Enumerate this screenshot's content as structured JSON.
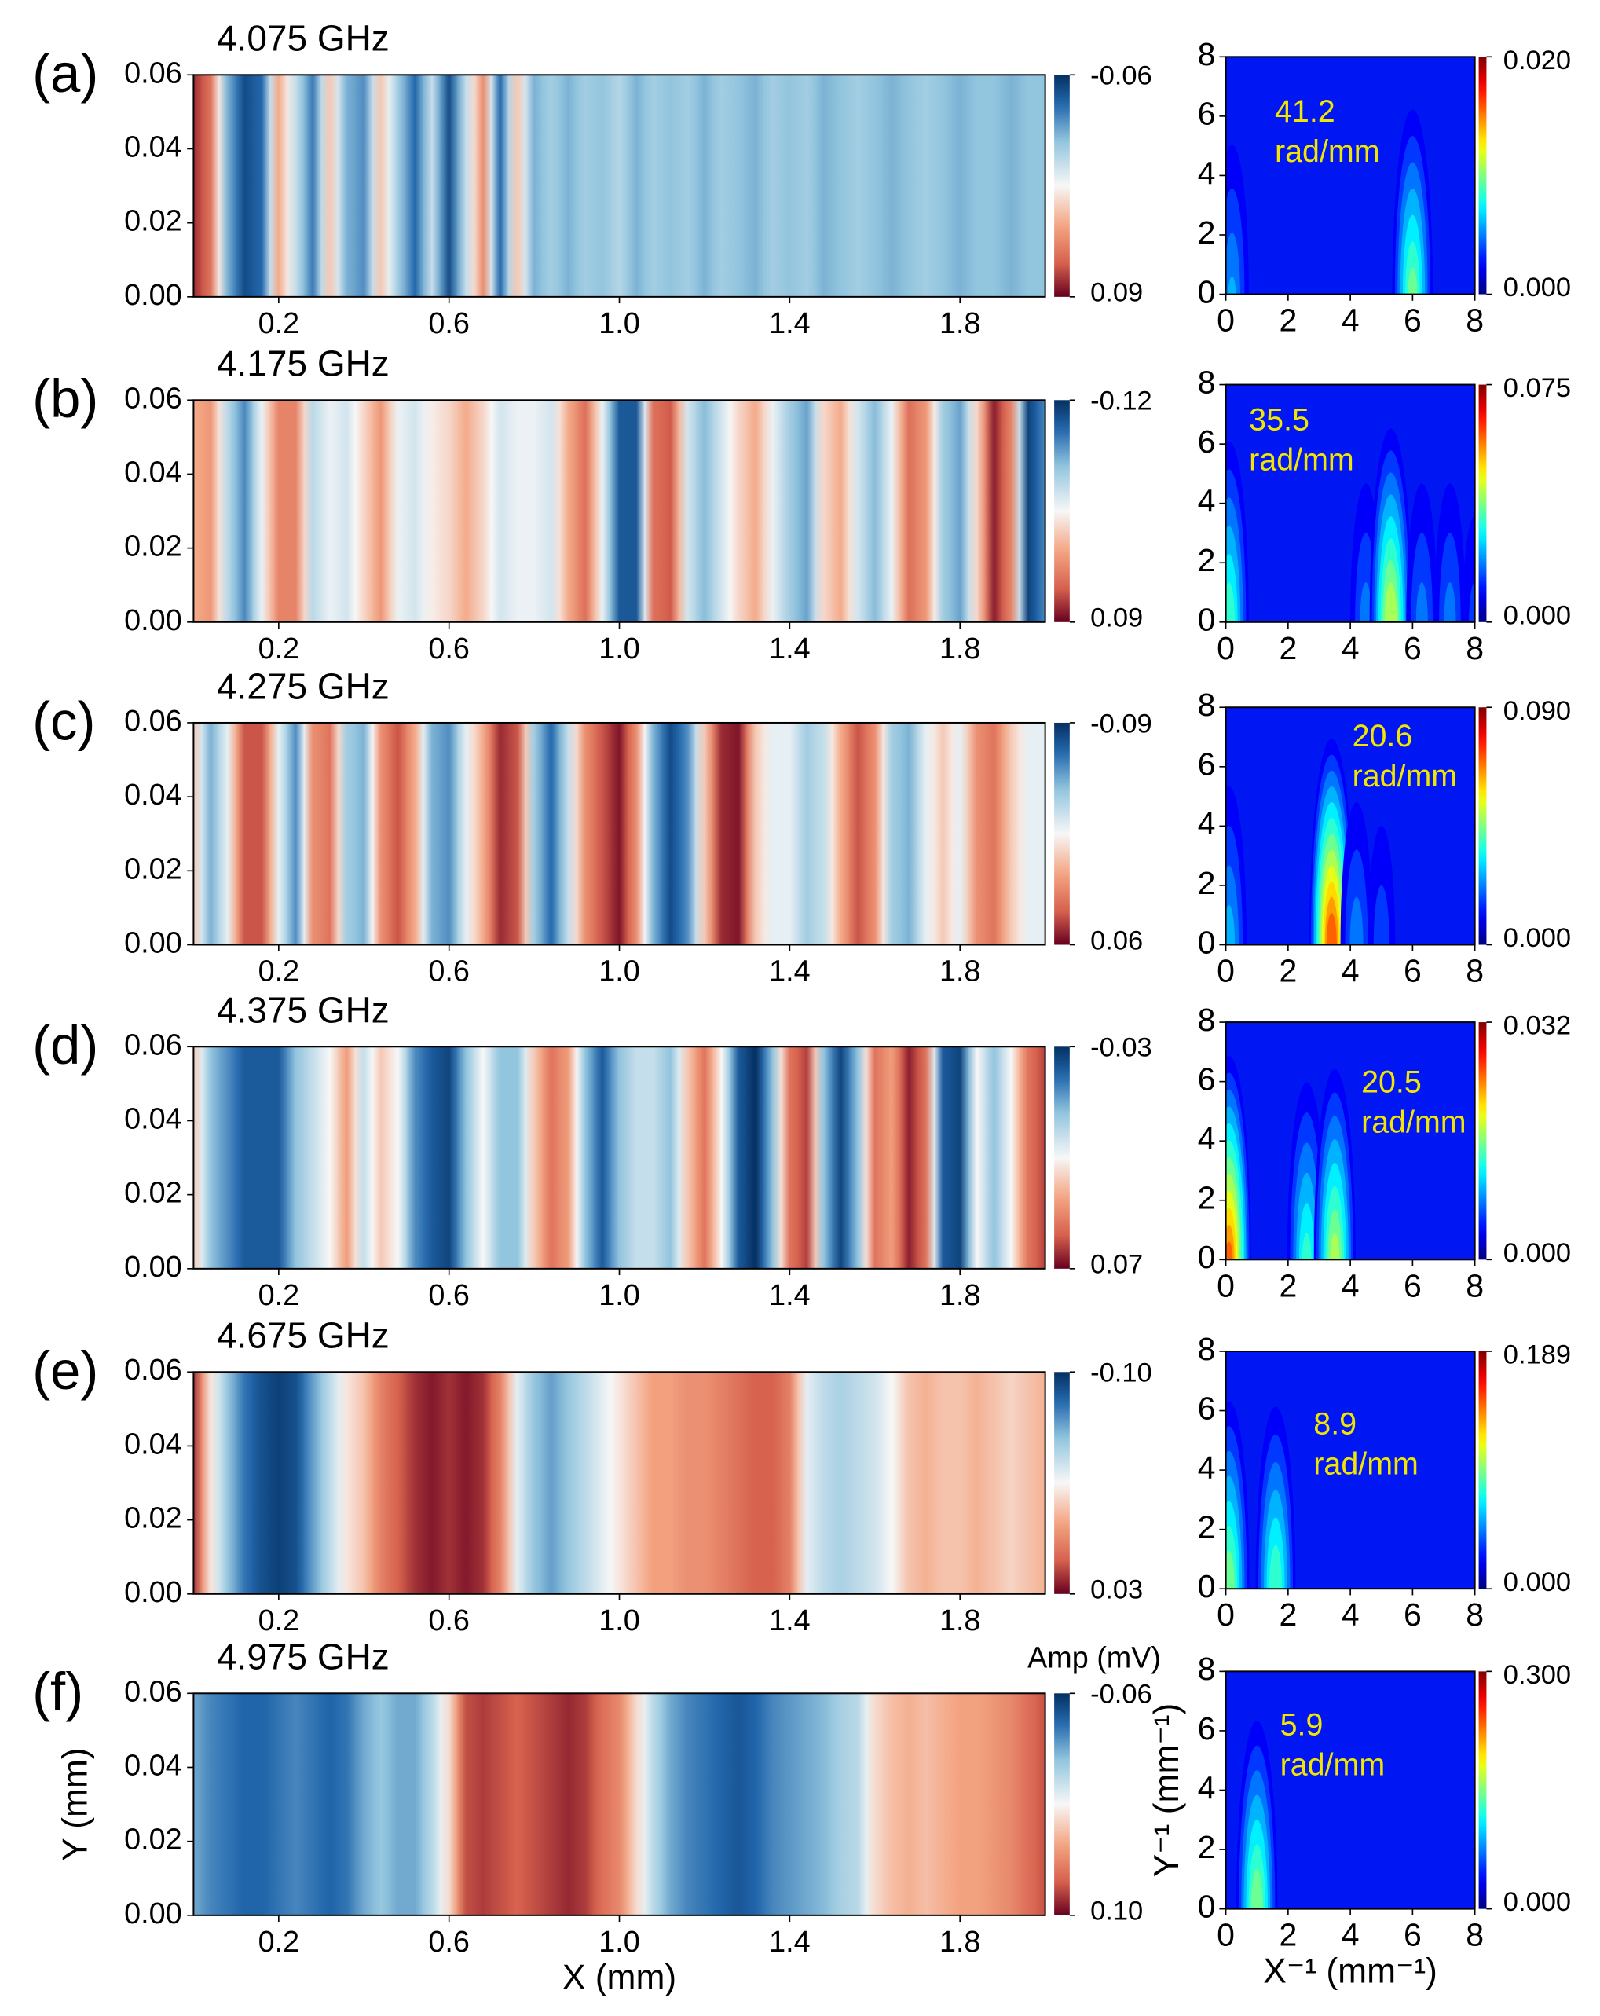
{
  "chart_data": [
    {
      "type": "heatmap",
      "panel": "(a)",
      "title": "4.075 GHz",
      "x": [
        0,
        0.04,
        0.08,
        0.12,
        0.16,
        0.2,
        0.24,
        0.28,
        0.32,
        0.36,
        0.4,
        0.44,
        0.48,
        0.52,
        0.56,
        0.6,
        0.64,
        0.68,
        0.72,
        0.76,
        0.8,
        0.84,
        0.88,
        0.92,
        0.96,
        1,
        1.04,
        1.08,
        1.12,
        1.16,
        1.2,
        1.24,
        1.28,
        1.32,
        1.36,
        1.4,
        1.44,
        1.48,
        1.52,
        1.56,
        1.6,
        1.64,
        1.68,
        1.72,
        1.76,
        1.8,
        1.84,
        1.88,
        1.92,
        1.96,
        2
      ],
      "values": [
        0.08,
        0.06,
        -0.02,
        -0.05,
        -0.04,
        0.04,
        0,
        -0.035,
        0.03,
        -0.02,
        -0.03,
        0.03,
        -0.01,
        -0.04,
        0,
        -0.05,
        0,
        0.05,
        -0.04,
        0.03,
        -0.02,
        -0.01,
        -0.02,
        -0.01,
        -0.015,
        -0.005,
        -0.02,
        -0.01,
        -0.015,
        -0.01,
        -0.02,
        -0.01,
        -0.015,
        -0.02,
        -0.01,
        -0.015,
        -0.01,
        -0.02,
        -0.015,
        -0.01,
        -0.015,
        -0.02,
        -0.015,
        -0.01,
        -0.015,
        -0.02,
        -0.015,
        -0.015,
        -0.02,
        -0.015,
        -0.015
      ],
      "xlim": [
        0,
        2
      ],
      "ylim": [
        0,
        0.06
      ],
      "xticks": [
        0.2,
        0.6,
        {
          "value": 1,
          "label": "1.0"
        },
        1.4,
        1.8
      ],
      "yticks": [
        {
          "value": 0,
          "label": "0.00"
        },
        0.02,
        0.04,
        0.06
      ],
      "cticks": [
        -0.06,
        0.09
      ]
    },
    {
      "type": "spectrum",
      "annotation": [
        "41.2",
        "rad/mm"
      ],
      "x": [
        0.2,
        6
      ],
      "values": [
        0.006,
        0.01
      ],
      "xlim": [
        0,
        8
      ],
      "ylim": [
        0,
        8
      ],
      "xticks": [
        0,
        2,
        4,
        6,
        8
      ],
      "yticks": [
        0,
        2,
        4,
        6,
        8
      ],
      "cticks": [
        {
          "value": 0,
          "label": "0.000"
        },
        {
          "value": 0.02,
          "label": "0.020"
        }
      ]
    },
    {
      "type": "heatmap",
      "panel": "(b)",
      "title": "4.175 GHz",
      "x": [
        0,
        0.04,
        0.08,
        0.12,
        0.16,
        0.2,
        0.24,
        0.28,
        0.32,
        0.36,
        0.4,
        0.44,
        0.48,
        0.52,
        0.56,
        0.6,
        0.64,
        0.68,
        0.72,
        0.76,
        0.8,
        0.84,
        0.88,
        0.92,
        0.96,
        1,
        1.04,
        1.08,
        1.12,
        1.16,
        1.2,
        1.24,
        1.28,
        1.32,
        1.36,
        1.4,
        1.44,
        1.48,
        1.52,
        1.56,
        1.6,
        1.64,
        1.68,
        1.72,
        1.76,
        1.8,
        1.84,
        1.88,
        1.92,
        1.96,
        2
      ],
      "values": [
        0.02,
        0.03,
        -0.04,
        -0.08,
        -0.02,
        0.04,
        0.04,
        -0.04,
        -0.02,
        -0.03,
        0,
        0.03,
        -0.02,
        -0.03,
        -0.01,
        0,
        0.02,
        0,
        -0.03,
        -0.02,
        -0.02,
        -0.03,
        0.02,
        0.05,
        -0.02,
        -0.1,
        -0.1,
        0.05,
        0.06,
        -0.03,
        -0.06,
        -0.03,
        0,
        0.02,
        -0.02,
        -0.05,
        -0.07,
        0,
        0.02,
        -0.03,
        -0.06,
        -0.02,
        0.05,
        0.03,
        -0.05,
        -0.07,
        0,
        0.08,
        0.04,
        -0.11,
        -0.08
      ],
      "xlim": [
        0,
        2
      ],
      "ylim": [
        0,
        0.06
      ],
      "xticks": [
        0.2,
        0.6,
        {
          "value": 1,
          "label": "1.0"
        },
        1.4,
        1.8
      ],
      "yticks": [
        {
          "value": 0,
          "label": "0.00"
        },
        0.02,
        0.04,
        0.06
      ],
      "cticks": [
        -0.12,
        0.09
      ]
    },
    {
      "type": "spectrum",
      "annotation": [
        "35.5",
        "rad/mm"
      ],
      "x": [
        0.1,
        4.5,
        5.3,
        6.3,
        7.2,
        8
      ],
      "values": [
        0.035,
        0.02,
        0.045,
        0.02,
        0.02,
        0.015
      ],
      "xlim": [
        0,
        8
      ],
      "ylim": [
        0,
        8
      ],
      "xticks": [
        0,
        2,
        4,
        6,
        8
      ],
      "yticks": [
        0,
        2,
        4,
        6,
        8
      ],
      "cticks": [
        {
          "value": 0,
          "label": "0.000"
        },
        0.075
      ]
    },
    {
      "type": "heatmap",
      "panel": "(c)",
      "title": "4.275 GHz",
      "x": [
        0,
        0.04,
        0.08,
        0.12,
        0.16,
        0.2,
        0.24,
        0.28,
        0.32,
        0.36,
        0.4,
        0.44,
        0.48,
        0.52,
        0.56,
        0.6,
        0.64,
        0.68,
        0.72,
        0.76,
        0.8,
        0.84,
        0.88,
        0.92,
        0.96,
        1,
        1.04,
        1.08,
        1.12,
        1.16,
        1.2,
        1.24,
        1.28,
        1.32,
        1.36,
        1.4,
        1.44,
        1.48,
        1.52,
        1.56,
        1.6,
        1.64,
        1.68,
        1.72,
        1.76,
        1.8,
        1.84,
        1.88,
        1.92,
        1.96,
        2
      ],
      "values": [
        0,
        -0.05,
        -0.02,
        0.04,
        0.04,
        -0.02,
        -0.06,
        0.02,
        0.03,
        -0.04,
        -0.05,
        0.02,
        0.04,
        0.01,
        -0.05,
        -0.06,
        -0.02,
        0.01,
        0.05,
        0.04,
        -0.04,
        -0.07,
        -0.03,
        0.02,
        0.04,
        0.055,
        0.02,
        -0.05,
        -0.08,
        -0.06,
        0,
        0.05,
        0.055,
        0,
        -0.02,
        -0.02,
        -0.04,
        -0.03,
        0.01,
        0.04,
        0.02,
        -0.04,
        -0.05,
        -0.02,
        0,
        -0.02,
        0.02,
        0.03,
        0,
        -0.02,
        -0.02
      ],
      "xlim": [
        0,
        2
      ],
      "ylim": [
        0,
        0.06
      ],
      "xticks": [
        0.2,
        0.6,
        {
          "value": 1,
          "label": "1.0"
        },
        1.4,
        1.8
      ],
      "yticks": [
        {
          "value": 0,
          "label": "0.00"
        },
        0.02,
        0.04,
        0.06
      ],
      "cticks": [
        -0.09,
        0.06
      ]
    },
    {
      "type": "spectrum",
      "annotation": [
        "20.6",
        "rad/mm"
      ],
      "x": [
        0.1,
        3.4,
        4.2,
        5
      ],
      "values": [
        0.03,
        0.075,
        0.025,
        0.02
      ],
      "xlim": [
        0,
        8
      ],
      "ylim": [
        0,
        8
      ],
      "xticks": [
        0,
        2,
        4,
        6,
        8
      ],
      "yticks": [
        0,
        2,
        4,
        6,
        8
      ],
      "cticks": [
        {
          "value": 0,
          "label": "0.000"
        },
        {
          "value": 0.09,
          "label": "0.090"
        }
      ]
    },
    {
      "type": "heatmap",
      "panel": "(d)",
      "title": "4.375 GHz",
      "x": [
        0,
        0.04,
        0.08,
        0.12,
        0.16,
        0.2,
        0.24,
        0.28,
        0.32,
        0.36,
        0.4,
        0.44,
        0.48,
        0.52,
        0.56,
        0.6,
        0.64,
        0.68,
        0.72,
        0.76,
        0.8,
        0.84,
        0.88,
        0.92,
        0.96,
        1,
        1.04,
        1.08,
        1.12,
        1.16,
        1.2,
        1.24,
        1.28,
        1.32,
        1.36,
        1.4,
        1.44,
        1.48,
        1.52,
        1.56,
        1.6,
        1.64,
        1.68,
        1.72,
        1.76,
        1.8,
        1.84,
        1.88,
        1.92,
        1.96,
        2
      ],
      "values": [
        0.03,
        0,
        -0.01,
        -0.02,
        -0.02,
        -0.02,
        0,
        0.01,
        0.02,
        0.04,
        0.01,
        0.03,
        0.02,
        -0.01,
        -0.02,
        -0.025,
        0,
        0.02,
        0,
        0,
        0.03,
        0.05,
        0.04,
        0,
        -0.02,
        0,
        0.01,
        0.01,
        0,
        0.03,
        0.05,
        0.02,
        -0.02,
        -0.03,
        0,
        0.05,
        0.06,
        0,
        -0.025,
        0,
        0.05,
        0.04,
        0.065,
        0.05,
        -0.02,
        -0.025,
        0.02,
        0,
        0.02,
        0.05,
        0.06
      ],
      "xlim": [
        0,
        2
      ],
      "ylim": [
        0,
        0.06
      ],
      "xticks": [
        0.2,
        0.6,
        {
          "value": 1,
          "label": "1.0"
        },
        1.4,
        1.8
      ],
      "yticks": [
        {
          "value": 0,
          "label": "0.00"
        },
        0.02,
        0.04,
        0.06
      ],
      "cticks": [
        -0.03,
        0.07
      ]
    },
    {
      "type": "spectrum",
      "annotation": [
        "20.5",
        "rad/mm"
      ],
      "x": [
        0.1,
        2.6,
        3.5
      ],
      "values": [
        0.025,
        0.014,
        0.018
      ],
      "xlim": [
        0,
        8
      ],
      "ylim": [
        0,
        8
      ],
      "xticks": [
        0,
        2,
        4,
        6,
        8
      ],
      "yticks": [
        0,
        2,
        4,
        6,
        8
      ],
      "cticks": [
        {
          "value": 0,
          "label": "0.000"
        },
        0.032
      ]
    },
    {
      "type": "heatmap",
      "panel": "(e)",
      "title": "4.675 GHz",
      "x": [
        0,
        0.04,
        0.08,
        0.12,
        0.16,
        0.2,
        0.24,
        0.28,
        0.32,
        0.36,
        0.4,
        0.44,
        0.48,
        0.52,
        0.56,
        0.6,
        0.64,
        0.68,
        0.72,
        0.76,
        0.8,
        0.84,
        0.88,
        0.92,
        0.96,
        1,
        1.04,
        1.08,
        1.12,
        1.16,
        1.2,
        1.24,
        1.28,
        1.32,
        1.36,
        1.4,
        1.44,
        1.48,
        1.52,
        1.56,
        1.6,
        1.64,
        1.68,
        1.72,
        1.76,
        1.8,
        1.84,
        1.88,
        1.92,
        1.96,
        2
      ],
      "values": [
        0.02,
        -0.03,
        -0.06,
        -0.08,
        -0.09,
        -0.095,
        -0.09,
        -0.07,
        -0.05,
        -0.03,
        -0.02,
        0,
        0.01,
        0.02,
        0.025,
        0.02,
        0.025,
        0.02,
        0,
        -0.04,
        -0.06,
        -0.07,
        -0.06,
        -0.05,
        -0.04,
        -0.03,
        -0.02,
        -0.01,
        -0.01,
        -0.005,
        -0.005,
        0,
        0.005,
        0.01,
        0.01,
        0,
        -0.04,
        -0.05,
        -0.055,
        -0.05,
        -0.045,
        -0.035,
        -0.02,
        -0.015,
        -0.02,
        -0.02,
        -0.015,
        -0.02,
        -0.025,
        -0.02,
        -0.015
      ],
      "xlim": [
        0,
        2
      ],
      "ylim": [
        0,
        0.06
      ],
      "xticks": [
        0.2,
        0.6,
        {
          "value": 1,
          "label": "1.0"
        },
        1.4,
        1.8
      ],
      "yticks": [
        {
          "value": 0,
          "label": "0.00"
        },
        0.02,
        0.04,
        0.06
      ],
      "cticks": [
        {
          "value": -0.1,
          "label": "-0.10"
        },
        0.03
      ]
    },
    {
      "type": "spectrum",
      "annotation": [
        "8.9",
        "rad/mm"
      ],
      "x": [
        0.1,
        1.6
      ],
      "values": [
        0.1,
        0.09
      ],
      "xlim": [
        0,
        8
      ],
      "ylim": [
        0,
        8
      ],
      "xticks": [
        0,
        2,
        4,
        6,
        8
      ],
      "yticks": [
        0,
        2,
        4,
        6,
        8
      ],
      "cticks": [
        {
          "value": 0,
          "label": "0.000"
        },
        0.189
      ]
    },
    {
      "type": "heatmap",
      "panel": "(f)",
      "title": "4.975 GHz",
      "x": [
        0,
        0.04,
        0.08,
        0.12,
        0.16,
        0.2,
        0.24,
        0.28,
        0.32,
        0.36,
        0.4,
        0.44,
        0.48,
        0.52,
        0.56,
        0.6,
        0.64,
        0.68,
        0.72,
        0.76,
        0.8,
        0.84,
        0.88,
        0.92,
        0.96,
        1,
        1.04,
        1.08,
        1.12,
        1.16,
        1.2,
        1.24,
        1.28,
        1.32,
        1.36,
        1.4,
        1.44,
        1.48,
        1.52,
        1.56,
        1.6,
        1.64,
        1.68,
        1.72,
        1.76,
        1.8,
        1.84,
        1.88,
        1.92,
        1.96,
        2
      ],
      "values": [
        -0.02,
        -0.03,
        -0.035,
        -0.04,
        -0.04,
        -0.035,
        -0.03,
        -0.035,
        -0.04,
        -0.035,
        -0.02,
        -0.01,
        -0.02,
        -0.02,
        0,
        0.03,
        0.08,
        0.085,
        0.08,
        0.075,
        0.08,
        0.085,
        0.09,
        0.085,
        0.07,
        0.06,
        0.03,
        0,
        -0.02,
        -0.03,
        -0.035,
        -0.04,
        -0.045,
        -0.04,
        -0.03,
        -0.025,
        -0.02,
        -0.015,
        -0.005,
        0,
        0.03,
        0.04,
        0.045,
        0.04,
        0.045,
        0.05,
        0.05,
        0.055,
        0.06,
        0.07,
        0.08
      ],
      "xlim": [
        0,
        2
      ],
      "ylim": [
        0,
        0.06
      ],
      "xticks": [
        0.2,
        0.6,
        {
          "value": 1,
          "label": "1.0"
        },
        1.4,
        1.8
      ],
      "yticks": [
        {
          "value": 0,
          "label": "0.00"
        },
        0.02,
        0.04,
        0.06
      ],
      "cticks": [
        -0.06,
        {
          "value": 0.1,
          "label": "0.10"
        }
      ],
      "xlabel": "X (mm)",
      "ylabel": "Y (mm)",
      "clabel": "Amp (mV)"
    },
    {
      "type": "spectrum",
      "annotation": [
        "5.9",
        "rad/mm"
      ],
      "x": [
        1
      ],
      "values": [
        0.16
      ],
      "xlim": [
        0,
        8
      ],
      "ylim": [
        0,
        8
      ],
      "xticks": [
        0,
        2,
        4,
        6,
        8
      ],
      "yticks": [
        0,
        2,
        4,
        6,
        8
      ],
      "cticks": [
        {
          "value": 0,
          "label": "0.000"
        },
        {
          "value": 0.3,
          "label": "0.300"
        }
      ],
      "xlabel": "X⁻¹ (mm⁻¹)",
      "ylabel": "Y⁻¹ (mm⁻¹)"
    }
  ]
}
